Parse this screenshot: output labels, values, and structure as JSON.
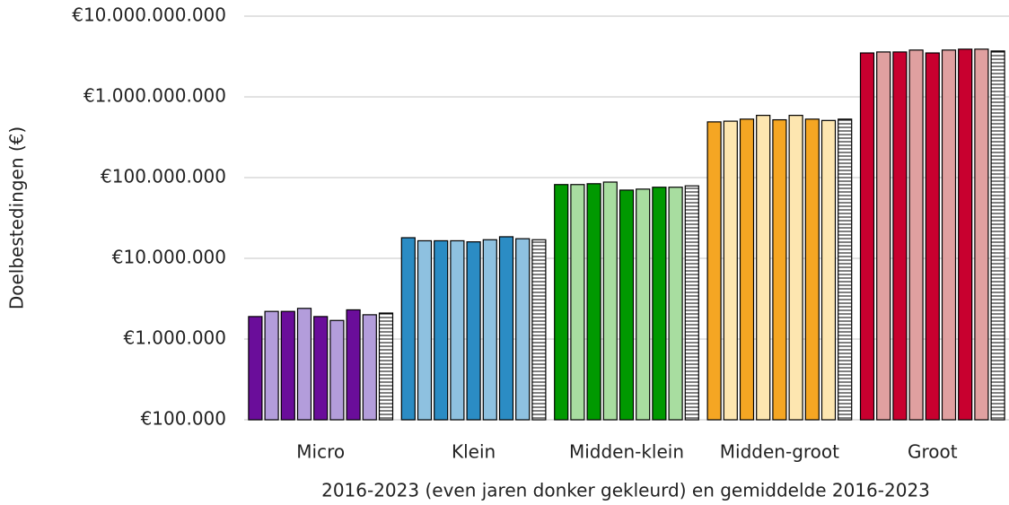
{
  "chart_data": {
    "type": "bar",
    "log_scale": true,
    "grid": true,
    "xlabel": "2016-2023 (even jaren donker gekleurd) en gemiddelde 2016-2023",
    "ylabel": "Doelbestedingen (€)",
    "categories": [
      "Micro",
      "Klein",
      "Midden-klein",
      "Midden-groot",
      "Groot"
    ],
    "values": [
      [
        1900000,
        2200000,
        2200000,
        2400000,
        1900000,
        1700000,
        2300000,
        2000000,
        2100000
      ],
      [
        18000000,
        16500000,
        16500000,
        16500000,
        16000000,
        17000000,
        18500000,
        17500000,
        17000000
      ],
      [
        82000000,
        82000000,
        84000000,
        88000000,
        70000000,
        72000000,
        76000000,
        76000000,
        79000000
      ],
      [
        490000000,
        500000000,
        530000000,
        590000000,
        520000000,
        590000000,
        530000000,
        510000000,
        530000000
      ],
      [
        3500000000,
        3600000000,
        3600000000,
        3800000000,
        3500000000,
        3800000000,
        3900000000,
        3900000000,
        3700000000
      ]
    ],
    "colors": [
      [
        "#6a0d9a",
        "#b39ddb"
      ],
      [
        "#2b8cc4",
        "#8ec1e0"
      ],
      [
        "#009900",
        "#a8dda0"
      ],
      [
        "#f5a623",
        "#fde6b0"
      ],
      [
        "#c8002f",
        "#e0a0a0"
      ]
    ],
    "hatched_last": true,
    "ylim": [
      100000,
      10000000000
    ],
    "yticks": [
      {
        "value": 100000,
        "label": "€100.000"
      },
      {
        "value": 1000000,
        "label": "€1.000.000"
      },
      {
        "value": 10000000,
        "label": "€10.000.000"
      },
      {
        "value": 100000000,
        "label": "€100.000.000"
      },
      {
        "value": 1000000000,
        "label": "€1.000.000.000"
      },
      {
        "value": 10000000000,
        "label": "€10.000.000.000"
      }
    ]
  }
}
